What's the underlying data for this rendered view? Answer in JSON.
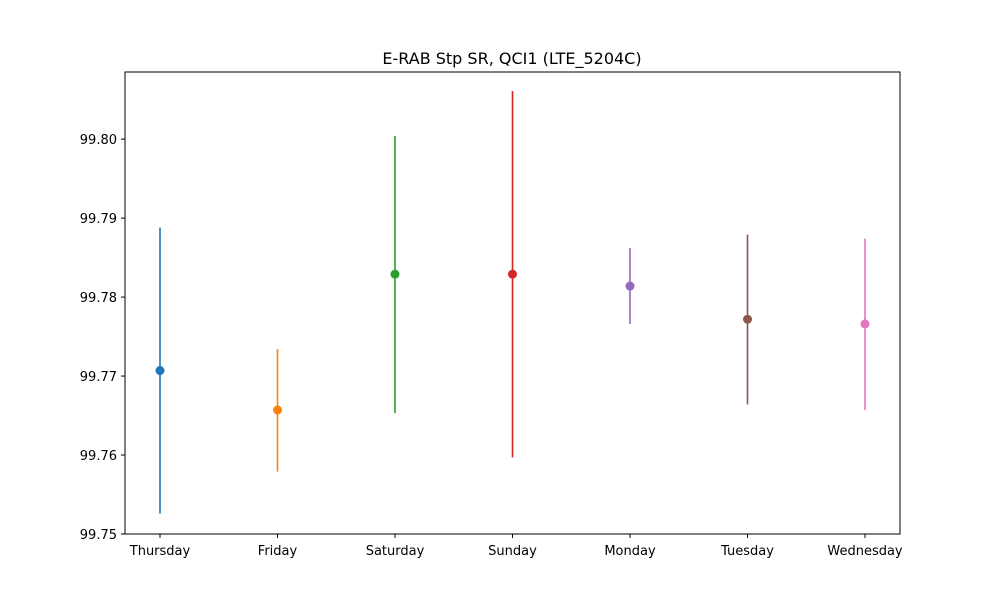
{
  "chart_data": {
    "type": "scatter",
    "title": "E-RAB Stp SR, QCI1 (LTE_5204C)",
    "xlabel": "",
    "ylabel": "",
    "ylim": [
      99.75,
      99.8085
    ],
    "yticks": [
      "99.75",
      "99.76",
      "99.77",
      "99.78",
      "99.79",
      "99.80"
    ],
    "grid": false,
    "categories": [
      "Thursday",
      "Friday",
      "Saturday",
      "Sunday",
      "Monday",
      "Tuesday",
      "Wednesday"
    ],
    "points": [
      {
        "category": "Thursday",
        "mean": 99.7707,
        "low": 99.7526,
        "high": 99.7888,
        "color": "#1f77b4"
      },
      {
        "category": "Friday",
        "mean": 99.7657,
        "low": 99.7579,
        "high": 99.7734,
        "color": "#ff7f0e"
      },
      {
        "category": "Saturday",
        "mean": 99.7829,
        "low": 99.7653,
        "high": 99.8004,
        "color": "#2ca02c"
      },
      {
        "category": "Sunday",
        "mean": 99.7829,
        "low": 99.7597,
        "high": 99.8061,
        "color": "#d62728"
      },
      {
        "category": "Monday",
        "mean": 99.7814,
        "low": 99.7766,
        "high": 99.7862,
        "color": "#9467bd"
      },
      {
        "category": "Tuesday",
        "mean": 99.7772,
        "low": 99.7664,
        "high": 99.7879,
        "color": "#8c564b"
      },
      {
        "category": "Wednesday",
        "mean": 99.7766,
        "low": 99.7657,
        "high": 99.7874,
        "color": "#e377c2"
      }
    ]
  }
}
